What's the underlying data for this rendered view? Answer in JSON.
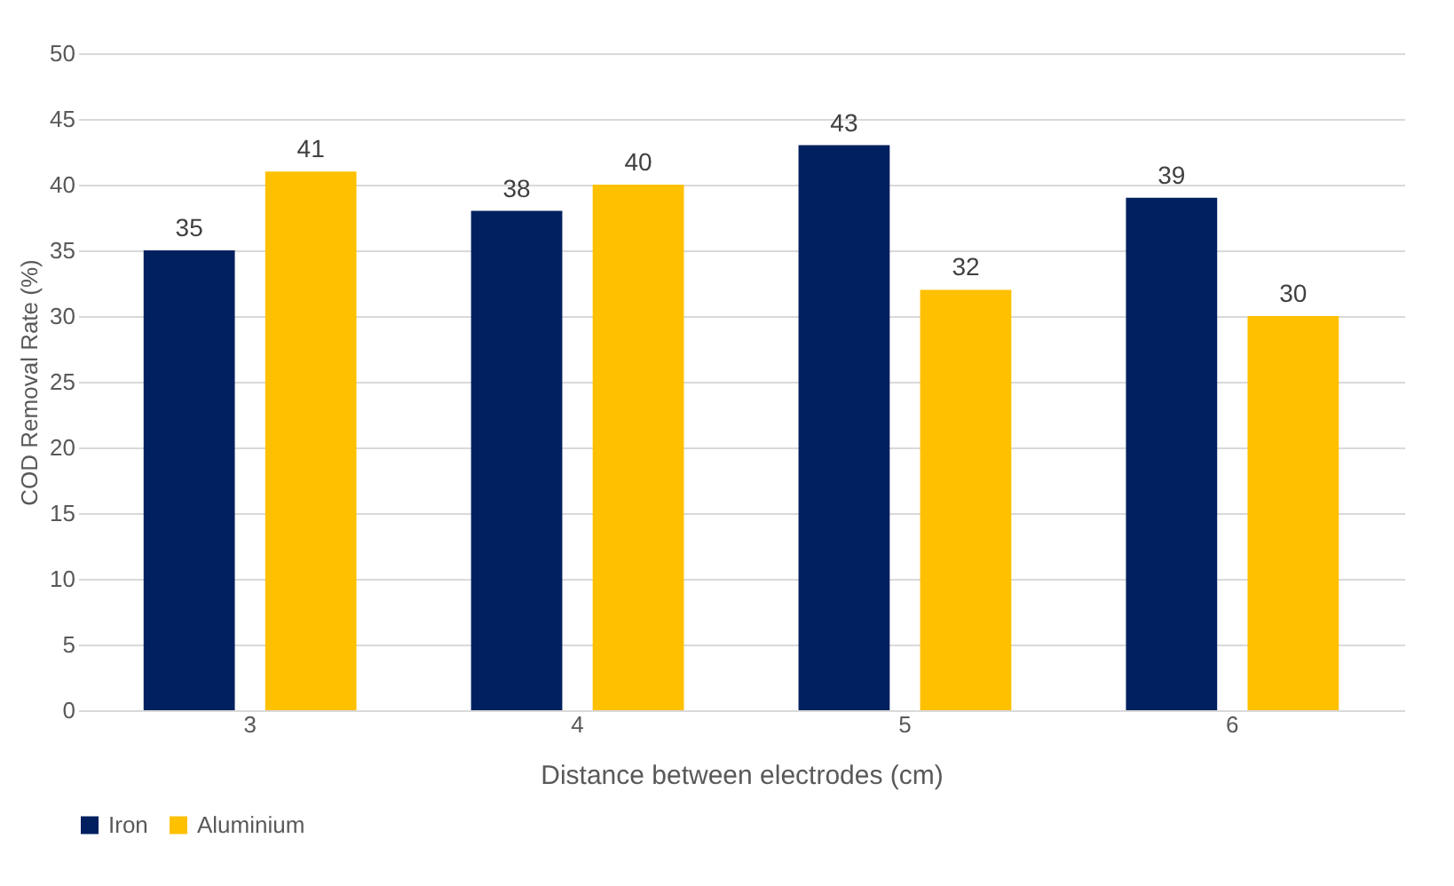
{
  "chart_data": {
    "type": "bar",
    "xlabel": "Distance between electrodes (cm)",
    "ylabel": "COD Removal Rate (%)",
    "categories": [
      "3",
      "4",
      "5",
      "6"
    ],
    "series": [
      {
        "name": "Iron",
        "color": "#002060",
        "values": [
          35,
          38,
          43,
          39
        ]
      },
      {
        "name": "Aluminium",
        "color": "#ffc000",
        "values": [
          41,
          40,
          32,
          30
        ]
      }
    ],
    "ylim": [
      0,
      50
    ],
    "yticks": [
      0,
      5,
      10,
      15,
      20,
      25,
      30,
      35,
      40,
      45,
      50
    ],
    "grid": "y",
    "legend": "bottom",
    "data_labels": true
  }
}
